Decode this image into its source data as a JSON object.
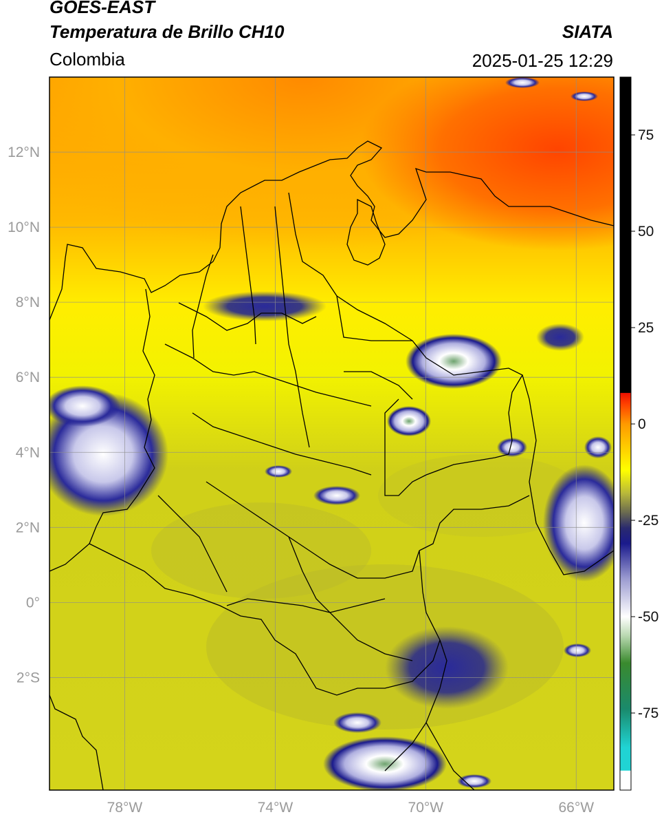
{
  "header": {
    "satellite": "GOES-EAST",
    "product": "Temperatura de Brillo CH10",
    "brand": "SIATA",
    "region": "Colombia",
    "timestamp": "2025-01-25 12:29"
  },
  "map": {
    "lon_range": [
      -80.0,
      -65.0
    ],
    "lat_range": [
      -5.0,
      14.0
    ],
    "lon_ticks": [
      {
        "value": -78,
        "label": "78°W"
      },
      {
        "value": -74,
        "label": "74°W"
      },
      {
        "value": -70,
        "label": "70°W"
      },
      {
        "value": -66,
        "label": "66°W"
      }
    ],
    "lat_ticks": [
      {
        "value": 12,
        "label": "12°N"
      },
      {
        "value": 10,
        "label": "10°N"
      },
      {
        "value": 8,
        "label": "8°N"
      },
      {
        "value": 6,
        "label": "6°N"
      },
      {
        "value": 4,
        "label": "4°N"
      },
      {
        "value": 2,
        "label": "2°N"
      },
      {
        "value": 0,
        "label": "0°"
      },
      {
        "value": -2,
        "label": "2°S"
      }
    ],
    "grid": true,
    "grid_color": "#8c8c8c"
  },
  "colorbar": {
    "range": [
      -95,
      90
    ],
    "ticks": [
      {
        "value": 75,
        "label": "75"
      },
      {
        "value": 50,
        "label": "50"
      },
      {
        "value": 25,
        "label": "25"
      },
      {
        "value": 0,
        "label": "0"
      },
      {
        "value": -25,
        "label": "-25"
      },
      {
        "value": -50,
        "label": "-50"
      },
      {
        "value": -75,
        "label": "-75"
      }
    ],
    "stops": [
      {
        "value": -95,
        "color": "#ffffff"
      },
      {
        "value": -90,
        "color": "#ffffff"
      },
      {
        "value": -89.9,
        "color": "#20d4d4"
      },
      {
        "value": -84,
        "color": "#20d4d4"
      },
      {
        "value": -74,
        "color": "#1a8a6c"
      },
      {
        "value": -62,
        "color": "#3a8a2e"
      },
      {
        "value": -55,
        "color": "#b8d8b0"
      },
      {
        "value": -50,
        "color": "#ffffff"
      },
      {
        "value": -40,
        "color": "#9a9ad0"
      },
      {
        "value": -31,
        "color": "#1a1a8c"
      },
      {
        "value": -27,
        "color": "#2a2a6e"
      },
      {
        "value": -23,
        "color": "#6a6a50"
      },
      {
        "value": -18,
        "color": "#b8b83a"
      },
      {
        "value": -12,
        "color": "#ffff00"
      },
      {
        "value": -6,
        "color": "#ffcc00"
      },
      {
        "value": 0,
        "color": "#ff9a00"
      },
      {
        "value": 5,
        "color": "#ff4400"
      },
      {
        "value": 8,
        "color": "#ee1100"
      },
      {
        "value": 8.1,
        "color": "#000000"
      },
      {
        "value": 90,
        "color": "#000000"
      }
    ]
  },
  "colors": {
    "background_field": "#d8d810",
    "north_warm": "#ff9a00",
    "sea_hot": "#ff5500",
    "cold_cloud": "#1a1a8c",
    "cloud_top": "#ffffff",
    "coldest": "#3a8a3a",
    "border": "#000000"
  }
}
